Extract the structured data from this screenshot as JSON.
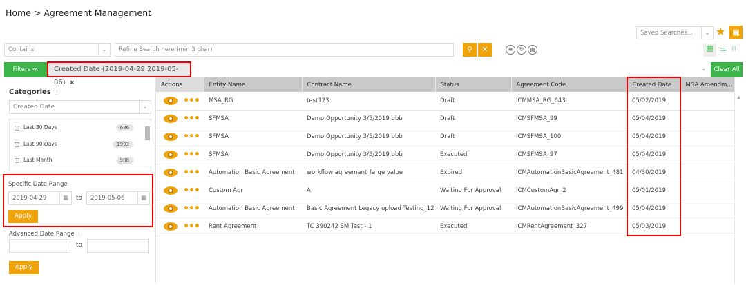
{
  "breadcrumb": "Home > Agreement Management",
  "saved_searches_placeholder": "Saved Searches...",
  "search": {
    "operator": "Contains",
    "placeholder": "Refine Search here (min 3 char)"
  },
  "filters_button": "Filters ≪",
  "filter_chip": "Created Date (2019-04-29 2019-05-06)",
  "clear_all": "Clear All",
  "sidebar": {
    "categories_label": "Categories",
    "category_selected": "Created Date",
    "options": [
      {
        "label": "Last 30 Days",
        "count": "686"
      },
      {
        "label": "Last 90 Days",
        "count": "1993"
      },
      {
        "label": "Last Month",
        "count": "908"
      }
    ],
    "specific_label": "Specific Date Range",
    "from": "2019-04-29",
    "to_label": "to",
    "to": "2019-05-06",
    "apply": "Apply",
    "advanced_label": "Advanced Date Range",
    "adv_from": "",
    "adv_to": ""
  },
  "colors": {
    "accent": "#f0a30a",
    "green": "#3bb44a",
    "highlight": "#e00000"
  },
  "table": {
    "headers": [
      "Actions",
      "Entity Name",
      "Contract Name",
      "Status",
      "Agreement Code",
      "Created Date",
      "MSA Amendm..."
    ],
    "rows": [
      [
        "MSA_RG",
        "test123",
        "Draft",
        "ICMMSA_RG_643",
        "05/02/2019"
      ],
      [
        "SFMSA",
        "Demo Opportunity 3/5/2019 bbb",
        "Draft",
        "ICMSFMSA_99",
        "05/04/2019"
      ],
      [
        "SFMSA",
        "Demo Opportunity 3/5/2019 bbb",
        "Draft",
        "ICMSFMSA_100",
        "05/04/2019"
      ],
      [
        "SFMSA",
        "Demo Opportunity 3/5/2019 bbb",
        "Executed",
        "ICMSFMSA_97",
        "05/04/2019"
      ],
      [
        "Automation Basic Agreement",
        "workflow agreement_large value",
        "Expired",
        "ICMAutomationBasicAgreement_481",
        "04/30/2019"
      ],
      [
        "Custom Agr",
        "A",
        "Waiting For Approval",
        "ICMCustomAgr_2",
        "05/01/2019"
      ],
      [
        "Automation Basic Agreement",
        "Basic Agreement Legacy upload Testing_12",
        "Waiting For Approval",
        "ICMAutomationBasicAgreement_499",
        "05/04/2019"
      ],
      [
        "Rent Agreement",
        "TC 390242 SM Test - 1",
        "Executed",
        "ICMRentAgreement_327",
        "05/03/2019"
      ]
    ]
  }
}
